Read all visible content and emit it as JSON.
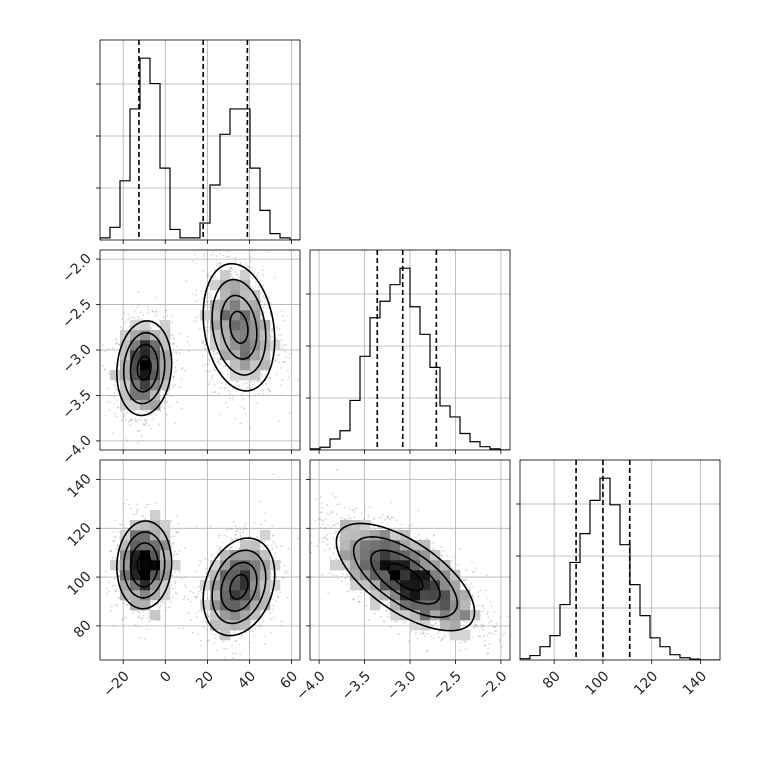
{
  "chart_data": {
    "type": "corner",
    "parameters": [
      {
        "ticks": [
          -20,
          0,
          20,
          40,
          60
        ],
        "tick_labels": [
          "−20",
          "0",
          "20",
          "40",
          "60"
        ],
        "range": [
          -31,
          64
        ],
        "hist": {
          "bin_edges": [
            -31,
            -26.25,
            -21.5,
            -16.75,
            -12,
            -7.25,
            -2.5,
            2.25,
            7,
            11.75,
            16.5,
            21.25,
            26,
            30.75,
            35.5,
            40.25,
            45,
            49.75,
            54.5,
            59.25,
            64
          ],
          "counts": [
            0.05,
            0.3,
            1.4,
            3.1,
            4.3,
            3.7,
            1.7,
            0.25,
            0.05,
            0.05,
            0.4,
            1.3,
            2.5,
            3.1,
            3.1,
            1.7,
            0.7,
            0.15,
            0.05,
            0
          ],
          "quantiles": [
            -12.5,
            18,
            39
          ]
        }
      },
      {
        "ticks": [
          -4.0,
          -3.5,
          -3.0,
          -2.5,
          -2.0
        ],
        "tick_labels": [
          "−4.0",
          "−3.5",
          "−3.0",
          "−2.5",
          "−2.0"
        ],
        "range": [
          -4.1,
          -1.9
        ],
        "hist": {
          "bin_edges": [
            -4.1,
            -3.99,
            -3.88,
            -3.77,
            -3.66,
            -3.55,
            -3.44,
            -3.33,
            -3.22,
            -3.11,
            -3.0,
            -2.89,
            -2.78,
            -2.67,
            -2.56,
            -2.45,
            -2.34,
            -2.23,
            -2.12,
            -2.01,
            -1.9
          ],
          "counts": [
            0.02,
            0.05,
            0.2,
            0.35,
            0.9,
            1.7,
            2.4,
            2.7,
            3.0,
            3.3,
            2.6,
            2.1,
            1.5,
            0.8,
            0.6,
            0.3,
            0.15,
            0.06,
            0.02,
            0
          ],
          "quantiles": [
            -3.36,
            -3.08,
            -2.71
          ]
        }
      },
      {
        "ticks": [
          80,
          100,
          120,
          140
        ],
        "tick_labels": [
          "80",
          "100",
          "120",
          "140"
        ],
        "range": [
          66,
          148
        ],
        "hist": {
          "bin_edges": [
            66,
            70.1,
            74.2,
            78.3,
            82.4,
            86.5,
            90.6,
            94.7,
            98.8,
            102.9,
            107,
            111.1,
            115.2,
            119.3,
            123.4,
            127.5,
            131.6,
            135.7,
            139.8,
            143.9,
            148
          ],
          "counts": [
            0.03,
            0.1,
            0.3,
            0.55,
            1.25,
            2.2,
            2.85,
            3.6,
            4.1,
            3.5,
            2.6,
            1.7,
            1.0,
            0.5,
            0.3,
            0.12,
            0.05,
            0.02,
            0,
            0
          ],
          "quantiles": [
            89,
            100,
            111
          ]
        }
      }
    ],
    "pairs": [
      {
        "x_param": 0,
        "y_param": 1,
        "blobs": [
          {
            "cx": -10,
            "cy": -3.2,
            "sx": 6.5,
            "sy": 0.26,
            "rho": 0.1,
            "n": 1500
          },
          {
            "cx": 35,
            "cy": -2.75,
            "sx": 8.5,
            "sy": 0.35,
            "rho": -0.2,
            "n": 1500
          }
        ],
        "contours": [
          {
            "cx": -10,
            "cy": -3.2,
            "sx": 6.5,
            "sy": 0.26,
            "rho": 0.1,
            "levels": [
              0.5,
              1.0,
              1.5,
              2.0
            ]
          },
          {
            "cx": 35,
            "cy": -2.75,
            "sx": 8.5,
            "sy": 0.35,
            "rho": -0.2,
            "levels": [
              0.5,
              1.0,
              1.5,
              2.0
            ]
          }
        ]
      },
      {
        "x_param": 0,
        "y_param": 2,
        "blobs": [
          {
            "cx": -10,
            "cy": 105,
            "sx": 6.5,
            "sy": 9,
            "rho": 0.05,
            "n": 1500
          },
          {
            "cx": 35,
            "cy": 96,
            "sx": 8.5,
            "sy": 10,
            "rho": 0.25,
            "n": 1500
          }
        ],
        "contours": [
          {
            "cx": -10,
            "cy": 105,
            "sx": 6.5,
            "sy": 9,
            "rho": 0.05,
            "levels": [
              0.5,
              1.0,
              1.5,
              2.0
            ]
          },
          {
            "cx": 35,
            "cy": 96,
            "sx": 8.5,
            "sy": 10,
            "rho": 0.25,
            "levels": [
              0.5,
              1.0,
              1.5,
              2.0
            ]
          }
        ]
      },
      {
        "x_param": 1,
        "y_param": 2,
        "blobs": [
          {
            "cx": -3.05,
            "cy": 100,
            "sx": 0.38,
            "sy": 11,
            "rho": -0.65,
            "n": 3000
          }
        ],
        "contours": [
          {
            "cx": -3.05,
            "cy": 100,
            "sx": 0.38,
            "sy": 11,
            "rho": -0.65,
            "levels": [
              0.5,
              1.0,
              1.5,
              2.0
            ]
          }
        ]
      }
    ],
    "grid": true,
    "colors": {
      "line": "#000000",
      "scatter": "#8c8c8c",
      "grid": "#b0b0b0",
      "density_dark": "#000000"
    }
  }
}
